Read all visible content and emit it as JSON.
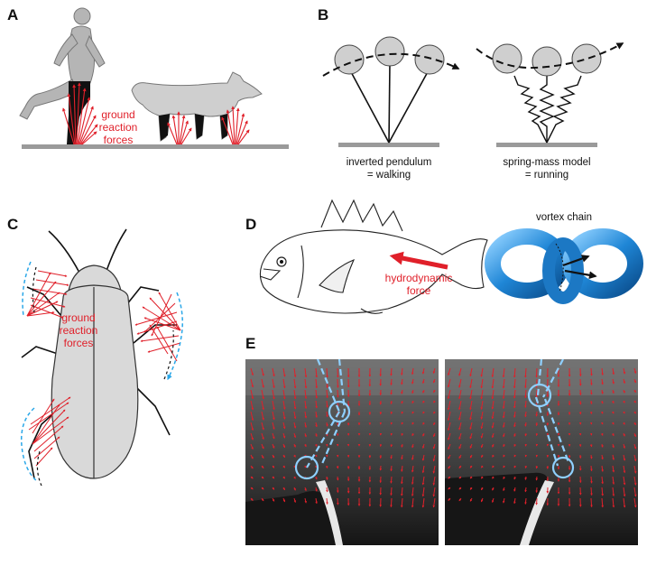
{
  "panels": {
    "a": {
      "label": "A",
      "force_label": [
        "ground",
        "reaction",
        "forces"
      ]
    },
    "b": {
      "label": "B",
      "left_caption": [
        "inverted pendulum",
        "= walking"
      ],
      "right_caption": [
        "spring-mass model",
        "= running"
      ]
    },
    "c": {
      "label": "C",
      "force_label": [
        "ground",
        "reaction",
        "forces"
      ]
    },
    "d": {
      "label": "D",
      "force_label": [
        "hydrodynamic",
        "force"
      ],
      "vortex_label": "vortex chain"
    },
    "e": {
      "label": "E"
    }
  },
  "colors": {
    "force_red": "#e0202a",
    "ground_gray": "#9a9a9a",
    "vortex_blue": "#1f86d6",
    "trace_blue": "#7fc4ef",
    "body_gray": "#d9d9d9"
  }
}
